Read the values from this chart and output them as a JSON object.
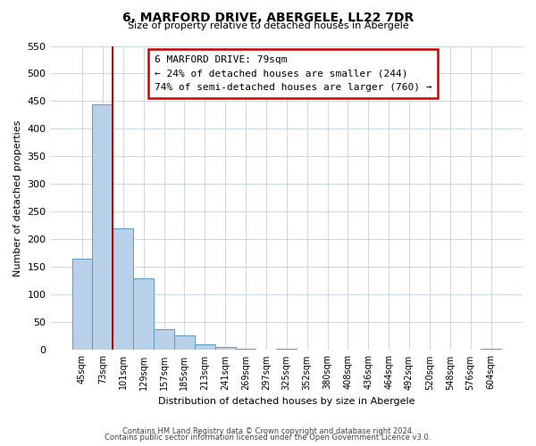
{
  "title": "6, MARFORD DRIVE, ABERGELE, LL22 7DR",
  "subtitle": "Size of property relative to detached houses in Abergele",
  "xlabel": "Distribution of detached houses by size in Abergele",
  "ylabel": "Number of detached properties",
  "bar_labels": [
    "45sqm",
    "73sqm",
    "101sqm",
    "129sqm",
    "157sqm",
    "185sqm",
    "213sqm",
    "241sqm",
    "269sqm",
    "297sqm",
    "325sqm",
    "352sqm",
    "380sqm",
    "408sqm",
    "436sqm",
    "464sqm",
    "492sqm",
    "520sqm",
    "548sqm",
    "576sqm",
    "604sqm"
  ],
  "bar_values": [
    165,
    445,
    220,
    130,
    37,
    26,
    10,
    5,
    2,
    0,
    2,
    0,
    0,
    0,
    0,
    1,
    0,
    0,
    0,
    0,
    2
  ],
  "bar_color": "#b8d0e8",
  "bar_edge_color": "#5a9abf",
  "highlight_color": "#cc0000",
  "ylim": [
    0,
    550
  ],
  "yticks": [
    0,
    50,
    100,
    150,
    200,
    250,
    300,
    350,
    400,
    450,
    500,
    550
  ],
  "annotation_title": "6 MARFORD DRIVE: 79sqm",
  "annotation_line1": "← 24% of detached houses are smaller (244)",
  "annotation_line2": "74% of semi-detached houses are larger (760) →",
  "footer_line1": "Contains HM Land Registry data © Crown copyright and database right 2024.",
  "footer_line2": "Contains public sector information licensed under the Open Government Licence v3.0.",
  "bg_color": "#ffffff",
  "grid_color": "#c8d8e8"
}
